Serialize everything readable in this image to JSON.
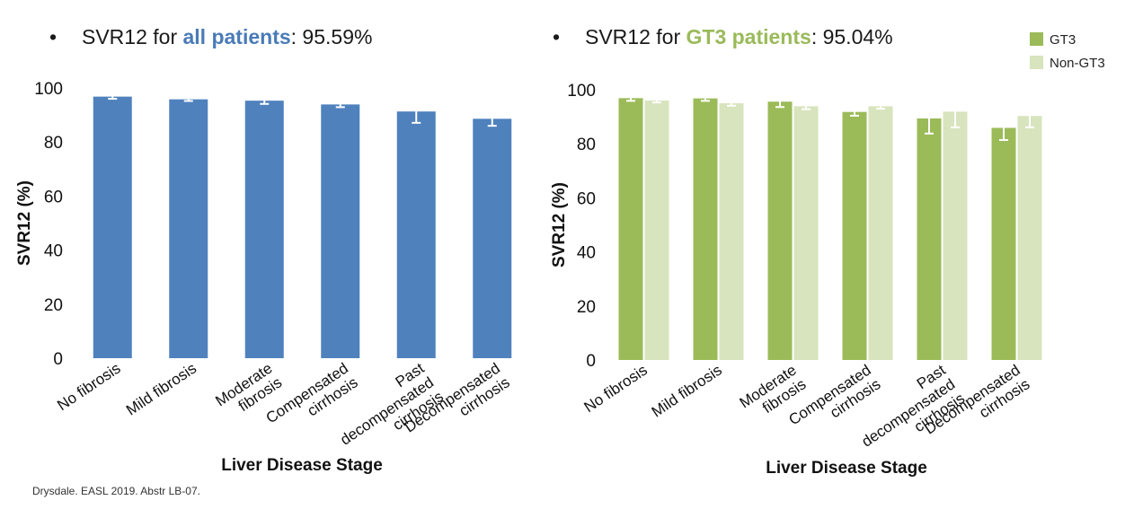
{
  "headlines": {
    "left": {
      "prefix": "SVR12 for ",
      "highlight": "all patients",
      "suffix": ": 95.59%",
      "highlight_color": "#4a7bb7"
    },
    "right": {
      "prefix": "SVR12 for ",
      "highlight": "GT3 patients",
      "suffix": ": 95.04%",
      "highlight_color": "#9aba5a"
    }
  },
  "citation": "Drysdale. EASL 2019. Abstr LB-07.",
  "chart_data": [
    {
      "type": "bar",
      "title": "",
      "xlabel": "Liver Disease Stage",
      "ylabel": "SVR12 (%)",
      "ylim": [
        0,
        100
      ],
      "yticks": [
        0,
        20,
        40,
        60,
        80,
        100
      ],
      "categories": [
        [
          "No fibrosis"
        ],
        [
          "Mild fibrosis"
        ],
        [
          "Moderate",
          "fibrosis"
        ],
        [
          "Compensated",
          "cirrhosis"
        ],
        [
          "Past",
          "decompensated",
          "cirrhosis"
        ],
        [
          "Decompensated",
          "cirrhosis"
        ]
      ],
      "series": [
        {
          "color": "#4f81bd",
          "values": [
            96.8,
            95.8,
            95.3,
            93.9,
            91.3,
            88.6
          ],
          "error_low": [
            96.0,
            95.2,
            94.1,
            92.9,
            87.1,
            86.0
          ],
          "error_high": [
            97.4,
            96.3,
            96.0,
            94.8,
            94.6,
            91.0
          ]
        }
      ],
      "legend": null
    },
    {
      "type": "bar",
      "title": "",
      "xlabel": "Liver Disease Stage",
      "ylabel": "SVR12 (%)",
      "ylim": [
        0,
        100
      ],
      "yticks": [
        0,
        20,
        40,
        60,
        80,
        100
      ],
      "categories": [
        [
          "No fibrosis"
        ],
        [
          "Mild fibrosis"
        ],
        [
          "Moderate",
          "fibrosis"
        ],
        [
          "Compensated",
          "cirrhosis"
        ],
        [
          "Past",
          "decompensated",
          "cirrhosis"
        ],
        [
          "Decompensated",
          "cirrhosis"
        ]
      ],
      "series": [
        {
          "name": "GT3",
          "color": "#9bbb59",
          "values": [
            96.9,
            96.8,
            95.6,
            91.8,
            89.4,
            85.9
          ],
          "error_low": [
            95.9,
            95.9,
            93.6,
            90.4,
            83.8,
            81.4
          ],
          "error_high": [
            97.9,
            97.7,
            97.0,
            93.0,
            94.0,
            89.3
          ]
        },
        {
          "name": "Non-GT3",
          "color": "#d7e4bd",
          "values": [
            96.0,
            95.0,
            93.9,
            93.9,
            91.9,
            90.3
          ],
          "error_low": [
            95.3,
            94.1,
            92.8,
            93.0,
            86.1,
            86.1
          ],
          "error_high": [
            96.6,
            95.8,
            94.8,
            94.8,
            95.4,
            93.6
          ]
        }
      ],
      "legend": "top-right"
    }
  ]
}
